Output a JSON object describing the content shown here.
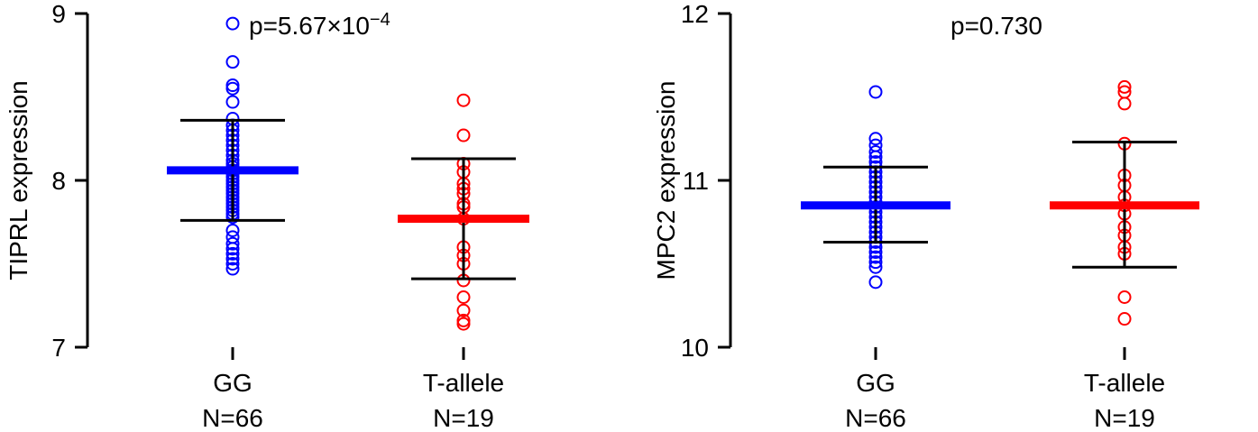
{
  "chart_data": [
    {
      "type": "scatter",
      "ylabel": "TIPRL expression",
      "ylim": [
        7,
        9
      ],
      "yticks": [
        "7",
        "8",
        "9"
      ],
      "pvalue_prefix": "p=5.67×10",
      "pvalue_exponent": "−4",
      "groups": [
        {
          "label": "GG",
          "n_label": "N=66",
          "color": "#0000ff",
          "mean": 8.06,
          "sd_low": 7.76,
          "sd_high": 8.36,
          "points": [
            8.94,
            8.71,
            8.57,
            8.55,
            8.47,
            8.37,
            8.33,
            8.3,
            8.27,
            8.24,
            8.21,
            8.18,
            8.15,
            8.12,
            8.1,
            8.08,
            8.06,
            8.04,
            8.02,
            8.0,
            7.98,
            7.96,
            7.94,
            7.92,
            7.9,
            7.88,
            7.86,
            7.84,
            7.82,
            7.8,
            7.78,
            7.7,
            7.66,
            7.62,
            7.59,
            7.56,
            7.53,
            7.5,
            7.47
          ]
        },
        {
          "label": "T-allele",
          "n_label": "N=19",
          "color": "#ff0000",
          "mean": 7.77,
          "sd_low": 7.41,
          "sd_high": 8.13,
          "points": [
            8.48,
            8.27,
            8.1,
            8.05,
            7.98,
            7.95,
            7.92,
            7.86,
            7.84,
            7.77,
            7.6,
            7.55,
            7.5,
            7.4,
            7.3,
            7.22,
            7.16,
            7.14
          ]
        }
      ]
    },
    {
      "type": "scatter",
      "ylabel": "MPC2 expression",
      "ylim": [
        10,
        12
      ],
      "yticks": [
        "10",
        "11",
        "12"
      ],
      "pvalue_prefix": "p=0.730",
      "pvalue_exponent": "",
      "groups": [
        {
          "label": "GG",
          "n_label": "N=66",
          "color": "#0000ff",
          "mean": 10.85,
          "sd_low": 10.63,
          "sd_high": 11.08,
          "points": [
            11.53,
            11.25,
            11.21,
            11.17,
            11.14,
            11.11,
            11.08,
            11.05,
            11.02,
            10.99,
            10.96,
            10.93,
            10.9,
            10.87,
            10.84,
            10.81,
            10.78,
            10.75,
            10.72,
            10.69,
            10.66,
            10.63,
            10.6,
            10.57,
            10.54,
            10.51,
            10.48,
            10.39
          ]
        },
        {
          "label": "T-allele",
          "n_label": "N=19",
          "color": "#ff0000",
          "mean": 10.85,
          "sd_low": 10.48,
          "sd_high": 11.23,
          "points": [
            11.56,
            11.53,
            11.46,
            11.22,
            11.03,
            10.97,
            10.9,
            10.85,
            10.8,
            10.72,
            10.67,
            10.6,
            10.56,
            10.3,
            10.17
          ]
        }
      ]
    }
  ]
}
